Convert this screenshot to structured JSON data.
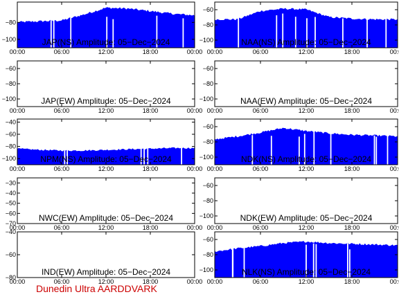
{
  "footer": {
    "label": "Dunedin Ultra AARDDVARK",
    "color": "#cc0000"
  },
  "colors": {
    "signal": "#0000ff",
    "frame": "#000000",
    "background": "#ffffff"
  },
  "chart_data": [
    {
      "type": "area",
      "title": "JAP(NS) Amplitude: 05-Dec-2024",
      "xticks": [
        "00:00",
        "06:00",
        "12:00",
        "18:00",
        "00:00"
      ],
      "yticks": [
        -80,
        -100
      ],
      "ylim": [
        -110,
        -56
      ],
      "series": [
        {
          "x": [
            0,
            3,
            6,
            9,
            12,
            15,
            18,
            21,
            24
          ],
          "values": [
            -80,
            -79,
            -78,
            -71,
            -63,
            -64,
            -67,
            -70,
            -72
          ]
        }
      ]
    },
    {
      "type": "area",
      "title": "NAA(NS) Amplitude: 05-Dec-2024",
      "xticks": [
        "00:00",
        "06:00",
        "12:00",
        "18:00",
        "00:00"
      ],
      "yticks": [
        -60,
        -80,
        -100
      ],
      "ylim": [
        -110,
        -50
      ],
      "series": [
        {
          "x": [
            0,
            3,
            6,
            9,
            12,
            15,
            18,
            21,
            24
          ],
          "values": [
            -73,
            -73,
            -62,
            -59,
            -60,
            -70,
            -72,
            -73,
            -73
          ]
        }
      ]
    },
    {
      "type": "line",
      "title": "JAP(EW) Amplitude: 05-Dec-2024",
      "xticks": [
        "00:00",
        "06:00",
        "12:00",
        "18:00",
        "00:00"
      ],
      "yticks": [
        -60,
        -80,
        -100
      ],
      "ylim": [
        -110,
        -50
      ],
      "series": []
    },
    {
      "type": "line",
      "title": "NAA(EW) Amplitude: 05-Dec-2024",
      "xticks": [
        "00:00",
        "06:00",
        "12:00",
        "18:00",
        "00:00"
      ],
      "yticks": [
        -60,
        -80,
        -100
      ],
      "ylim": [
        -110,
        -50
      ],
      "series": []
    },
    {
      "type": "area",
      "title": "NPM(NS) Amplitude: 05-Dec-2024",
      "xticks": [
        "00:00",
        "06:00",
        "12:00",
        "18:00",
        "00:00"
      ],
      "yticks": [
        -40,
        -60,
        -80,
        -100
      ],
      "ylim": [
        -110,
        -35
      ],
      "series": [
        {
          "x": [
            0,
            3,
            6,
            9,
            12,
            15,
            18,
            21,
            24
          ],
          "values": [
            -84,
            -86,
            -87,
            -87,
            -86,
            -85,
            -84,
            -83,
            -83
          ]
        }
      ]
    },
    {
      "type": "area",
      "title": "NDK(NS) Amplitude: 05-Dec-2024",
      "xticks": [
        "00:00",
        "06:00",
        "12:00",
        "18:00",
        "00:00"
      ],
      "yticks": [
        -60,
        -80,
        -100
      ],
      "ylim": [
        -110,
        -50
      ],
      "series": [
        {
          "x": [
            0,
            3,
            6,
            9,
            12,
            15,
            18,
            21,
            24
          ],
          "values": [
            -77,
            -73,
            -68,
            -62,
            -66,
            -69,
            -71,
            -72,
            -73
          ]
        }
      ]
    },
    {
      "type": "line",
      "title": "NWC(EW) Amplitude: 05-Dec-2024",
      "xticks": [
        "00:00",
        "06:00",
        "12:00",
        "18:00",
        "00:00"
      ],
      "yticks": [
        -30,
        -40,
        -50,
        -60,
        -70
      ],
      "ylim": [
        -70,
        -25
      ],
      "series": []
    },
    {
      "type": "line",
      "title": "NDK(EW) Amplitude: 05-Dec-2024",
      "xticks": [
        "00:00",
        "06:00",
        "12:00",
        "18:00",
        "00:00"
      ],
      "yticks": [
        -60,
        -80,
        -100
      ],
      "ylim": [
        -110,
        -50
      ],
      "series": []
    },
    {
      "type": "line",
      "title": "IND(EW) Amplitude: 05-Dec-2024",
      "xticks": [
        "00:00",
        "06:00",
        "12:00",
        "18:00",
        "00:00"
      ],
      "yticks": [
        -40,
        -60,
        -80
      ],
      "ylim": [
        -80,
        -40
      ],
      "series": []
    },
    {
      "type": "area",
      "title": "NLK(NS) Amplitude: 05-Dec-2024",
      "xticks": [
        "00:00",
        "06:00",
        "12:00",
        "18:00",
        "00:00"
      ],
      "yticks": [
        -60,
        -80,
        -100
      ],
      "ylim": [
        -110,
        -50
      ],
      "series": [
        {
          "x": [
            0,
            3,
            6,
            9,
            12,
            15,
            18,
            21,
            24
          ],
          "values": [
            -76,
            -72,
            -69,
            -65,
            -63,
            -65,
            -66,
            -67,
            -68
          ]
        }
      ]
    }
  ]
}
